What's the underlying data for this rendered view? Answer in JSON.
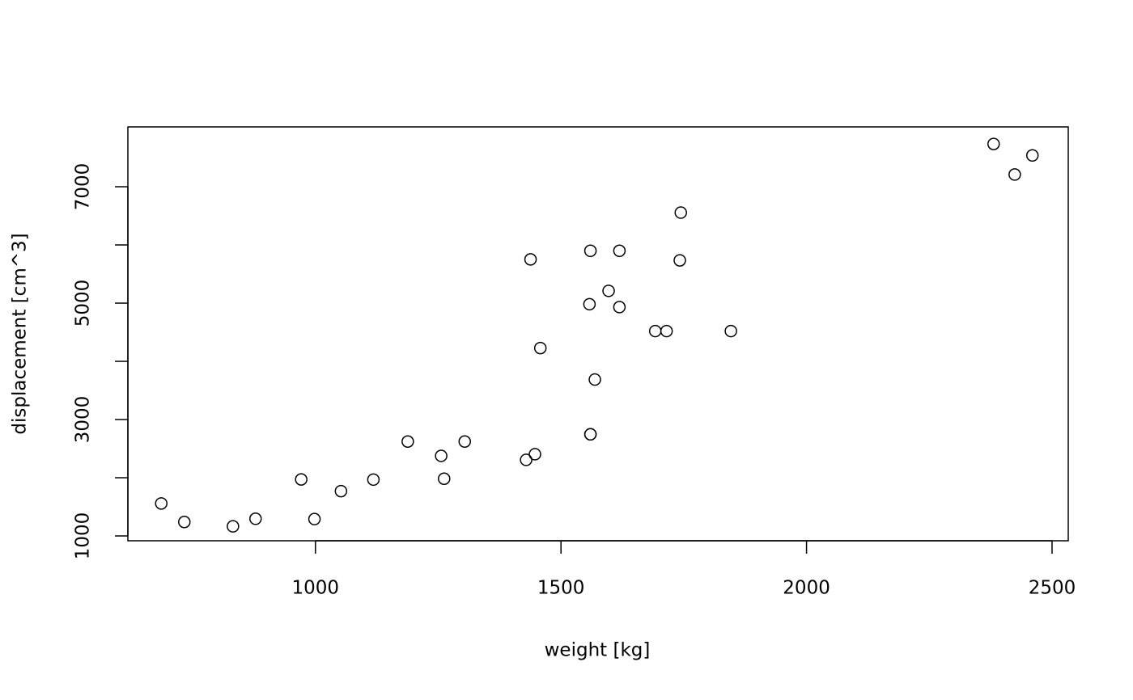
{
  "chart_data": {
    "type": "scatter",
    "xlabel": "weight [kg]",
    "ylabel": "displacement [cm^3]",
    "x": [
      686,
      733,
      832,
      878,
      971,
      998,
      1052,
      1118,
      1188,
      1262,
      1256,
      1304,
      1429,
      1447,
      1438,
      1458,
      1558,
      1560,
      1560,
      1560,
      1569,
      1597,
      1619,
      1619,
      1692,
      1715,
      1846,
      1742,
      1744,
      2381,
      2424,
      2460
    ],
    "values": [
      1558,
      1240,
      1165,
      1295,
      1971,
      1290,
      1770,
      1968,
      2622,
      1983,
      2376,
      2622,
      2307,
      2404,
      5752,
      4228,
      4982,
      2746,
      2746,
      5899,
      3687,
      5211,
      5899,
      4932,
      4520,
      4520,
      4520,
      5735,
      6555,
      7735,
      7210,
      7538
    ],
    "color": "#000000",
    "xlim": [
      618,
      2533
    ],
    "ylim": [
      917,
      8028
    ],
    "xticks": [
      1000,
      1500,
      2000,
      2500
    ],
    "yticks": [
      1000,
      3000,
      5000,
      7000
    ],
    "yminorticks": [
      2000,
      4000,
      6000
    ]
  }
}
